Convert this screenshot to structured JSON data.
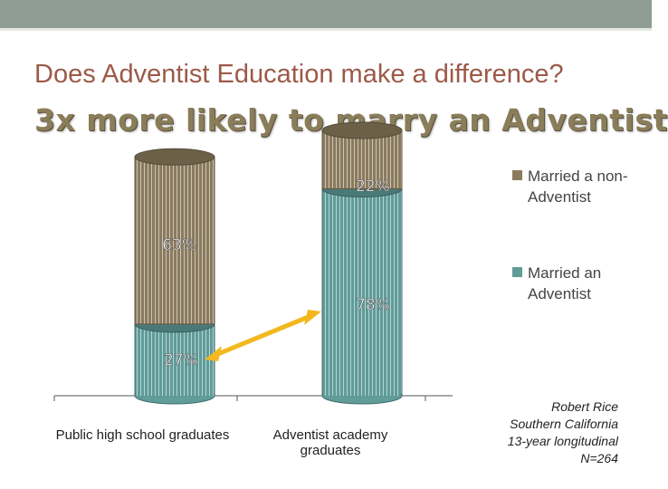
{
  "title": "Does Adventist Education make a difference?",
  "subtitle": "3x more likely to marry an Adventist",
  "chart_data": {
    "type": "bar",
    "stacked": true,
    "categories": [
      "Public high school graduates",
      "Adventist academy graduates"
    ],
    "series": [
      {
        "name": "Married an Adventist",
        "values": [
          27,
          78
        ],
        "color": "#5f9c9a"
      },
      {
        "name": "Married a non-Adventist",
        "values": [
          63,
          22
        ],
        "color": "#8b7b5e"
      }
    ],
    "data_labels": [
      [
        "27%",
        "63%"
      ],
      [
        "78%",
        "22%"
      ]
    ],
    "legend_position": "right",
    "annotation": "arrow from 27% to 78%"
  },
  "legend": [
    {
      "label": "Married a non-Adventist",
      "color": "#8b7b5e"
    },
    {
      "label": "Married an Adventist",
      "color": "#5f9c9a"
    }
  ],
  "source_lines": [
    "Robert Rice",
    "Southern California",
    "13-year longitudinal",
    "N=264"
  ],
  "arrow_color": "#f2b81e"
}
